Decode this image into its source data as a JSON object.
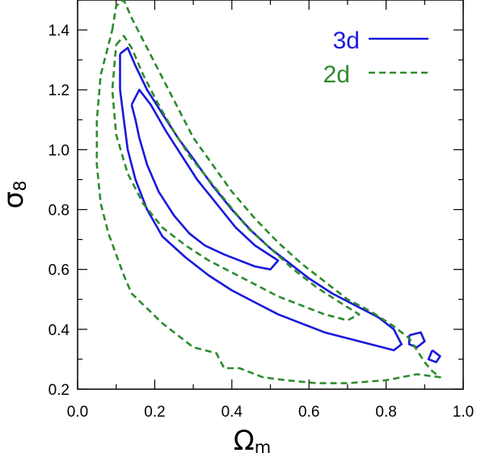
{
  "chart_data": {
    "type": "line",
    "title": "",
    "xlabel": "Ω",
    "xlabel_sub": "m",
    "ylabel": "σ",
    "ylabel_sub": "8",
    "xlim": [
      0.0,
      1.0
    ],
    "ylim": [
      0.2,
      1.5
    ],
    "xticks": [
      0.0,
      0.2,
      0.4,
      0.6,
      0.8,
      1.0
    ],
    "xtick_labels": [
      "0.0",
      "0.2",
      "0.4",
      "0.6",
      "0.8",
      "1.0"
    ],
    "yticks": [
      0.2,
      0.4,
      0.6,
      0.8,
      1.0,
      1.2,
      1.4
    ],
    "ytick_labels": [
      "0.2",
      "0.4",
      "0.6",
      "0.8",
      "1.0",
      "1.2",
      "1.4"
    ],
    "grid": false,
    "legend_position": "top-right",
    "series": [
      {
        "name": "3d",
        "color": "#1a1adb",
        "style": "solid",
        "contours": [
          [
            [
              0.11,
              1.32
            ],
            [
              0.13,
              1.34
            ],
            [
              0.15,
              1.28
            ],
            [
              0.18,
              1.2
            ],
            [
              0.22,
              1.12
            ],
            [
              0.26,
              1.04
            ],
            [
              0.3,
              0.97
            ],
            [
              0.35,
              0.88
            ],
            [
              0.4,
              0.8
            ],
            [
              0.45,
              0.73
            ],
            [
              0.5,
              0.67
            ],
            [
              0.55,
              0.62
            ],
            [
              0.6,
              0.57
            ],
            [
              0.66,
              0.52
            ],
            [
              0.72,
              0.48
            ],
            [
              0.78,
              0.44
            ],
            [
              0.82,
              0.4
            ],
            [
              0.84,
              0.35
            ],
            [
              0.82,
              0.33
            ],
            [
              0.76,
              0.35
            ],
            [
              0.7,
              0.37
            ],
            [
              0.64,
              0.39
            ],
            [
              0.58,
              0.42
            ],
            [
              0.52,
              0.45
            ],
            [
              0.46,
              0.49
            ],
            [
              0.4,
              0.53
            ],
            [
              0.34,
              0.58
            ],
            [
              0.28,
              0.64
            ],
            [
              0.22,
              0.71
            ],
            [
              0.18,
              0.8
            ],
            [
              0.15,
              0.9
            ],
            [
              0.13,
              1.0
            ],
            [
              0.12,
              1.1
            ],
            [
              0.11,
              1.2
            ],
            [
              0.11,
              1.32
            ]
          ],
          [
            [
              0.14,
              1.15
            ],
            [
              0.16,
              1.2
            ],
            [
              0.19,
              1.15
            ],
            [
              0.23,
              1.06
            ],
            [
              0.27,
              0.98
            ],
            [
              0.31,
              0.9
            ],
            [
              0.36,
              0.82
            ],
            [
              0.41,
              0.74
            ],
            [
              0.46,
              0.68
            ],
            [
              0.52,
              0.63
            ],
            [
              0.5,
              0.6
            ],
            [
              0.46,
              0.61
            ],
            [
              0.42,
              0.63
            ],
            [
              0.38,
              0.65
            ],
            [
              0.33,
              0.68
            ],
            [
              0.29,
              0.72
            ],
            [
              0.25,
              0.78
            ],
            [
              0.21,
              0.86
            ],
            [
              0.18,
              0.95
            ],
            [
              0.16,
              1.04
            ],
            [
              0.15,
              1.1
            ],
            [
              0.14,
              1.15
            ]
          ],
          [
            [
              0.86,
              0.38
            ],
            [
              0.89,
              0.39
            ],
            [
              0.9,
              0.36
            ],
            [
              0.88,
              0.34
            ],
            [
              0.86,
              0.35
            ],
            [
              0.86,
              0.38
            ]
          ],
          [
            [
              0.92,
              0.33
            ],
            [
              0.94,
              0.31
            ],
            [
              0.93,
              0.29
            ],
            [
              0.91,
              0.3
            ],
            [
              0.92,
              0.33
            ]
          ]
        ]
      },
      {
        "name": "2d",
        "color": "#2e8b2e",
        "style": "dashed",
        "contours": [
          [
            [
              0.09,
              1.4
            ],
            [
              0.1,
              1.48
            ],
            [
              0.12,
              1.5
            ],
            [
              0.14,
              1.44
            ],
            [
              0.18,
              1.34
            ],
            [
              0.22,
              1.24
            ],
            [
              0.26,
              1.14
            ],
            [
              0.3,
              1.04
            ],
            [
              0.35,
              0.95
            ],
            [
              0.4,
              0.86
            ],
            [
              0.46,
              0.77
            ],
            [
              0.52,
              0.69
            ],
            [
              0.58,
              0.62
            ],
            [
              0.64,
              0.56
            ],
            [
              0.7,
              0.5
            ],
            [
              0.76,
              0.46
            ],
            [
              0.82,
              0.41
            ],
            [
              0.86,
              0.37
            ],
            [
              0.88,
              0.33
            ],
            [
              0.9,
              0.29
            ],
            [
              0.92,
              0.26
            ],
            [
              0.94,
              0.24
            ],
            [
              0.88,
              0.25
            ],
            [
              0.8,
              0.23
            ],
            [
              0.7,
              0.22
            ],
            [
              0.62,
              0.22
            ],
            [
              0.54,
              0.23
            ],
            [
              0.48,
              0.24
            ],
            [
              0.42,
              0.27
            ],
            [
              0.38,
              0.27
            ],
            [
              0.36,
              0.32
            ],
            [
              0.3,
              0.34
            ],
            [
              0.26,
              0.38
            ],
            [
              0.22,
              0.42
            ],
            [
              0.18,
              0.47
            ],
            [
              0.14,
              0.52
            ],
            [
              0.12,
              0.58
            ],
            [
              0.1,
              0.65
            ],
            [
              0.08,
              0.72
            ],
            [
              0.06,
              0.82
            ],
            [
              0.05,
              0.95
            ],
            [
              0.05,
              1.1
            ],
            [
              0.06,
              1.25
            ],
            [
              0.08,
              1.35
            ],
            [
              0.09,
              1.4
            ]
          ],
          [
            [
              0.1,
              1.35
            ],
            [
              0.12,
              1.38
            ],
            [
              0.14,
              1.34
            ],
            [
              0.17,
              1.25
            ],
            [
              0.21,
              1.15
            ],
            [
              0.25,
              1.06
            ],
            [
              0.29,
              0.98
            ],
            [
              0.34,
              0.9
            ],
            [
              0.39,
              0.82
            ],
            [
              0.44,
              0.74
            ],
            [
              0.5,
              0.67
            ],
            [
              0.56,
              0.6
            ],
            [
              0.62,
              0.54
            ],
            [
              0.68,
              0.49
            ],
            [
              0.73,
              0.45
            ],
            [
              0.7,
              0.43
            ],
            [
              0.64,
              0.45
            ],
            [
              0.58,
              0.48
            ],
            [
              0.52,
              0.51
            ],
            [
              0.46,
              0.55
            ],
            [
              0.4,
              0.59
            ],
            [
              0.34,
              0.63
            ],
            [
              0.28,
              0.68
            ],
            [
              0.22,
              0.74
            ],
            [
              0.17,
              0.82
            ],
            [
              0.13,
              0.92
            ],
            [
              0.1,
              1.05
            ],
            [
              0.09,
              1.2
            ],
            [
              0.1,
              1.35
            ]
          ]
        ]
      }
    ]
  }
}
